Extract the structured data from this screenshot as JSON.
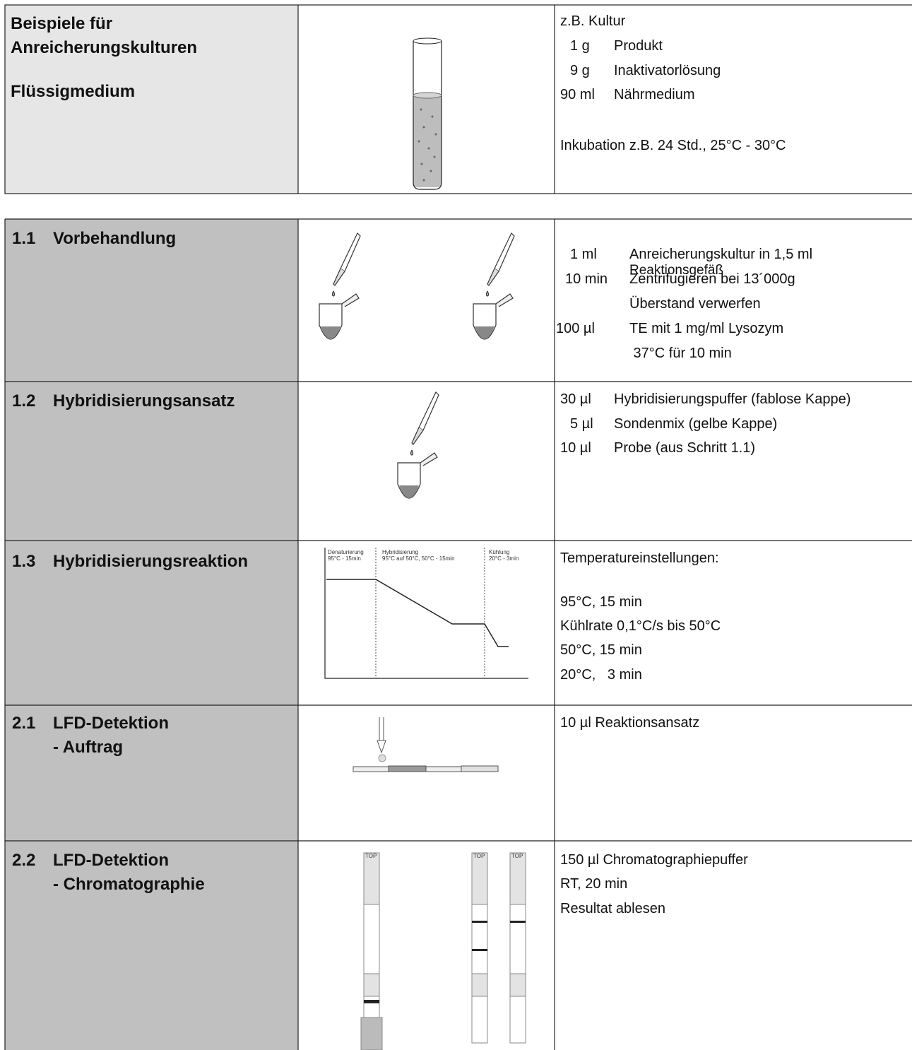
{
  "culture": {
    "title_lines": [
      "Beispiele für",
      "Anreicherungskulturen"
    ],
    "medium": "Flüssigmedium",
    "example": "z.B. Kultur",
    "items": [
      {
        "amount": "1 g",
        "text": "Produkt"
      },
      {
        "amount": "9 g",
        "text": "Inaktivatorlösung"
      },
      {
        "amount": "90 ml",
        "text": "Nährmedium"
      }
    ],
    "incubation": "Inkubation z.B. 24 Std., 25°C - 30°C"
  },
  "steps": [
    {
      "number": "1.1",
      "title": "Vorbehandlung",
      "lines": [
        {
          "amount": "1 ml",
          "text": [
            "Anreicherungskultur in 1,5 ml",
            "Reaktionsgefäß"
          ]
        },
        {
          "amount": "10 min",
          "text": [
            "Zentrifugieren bei 13´000g"
          ]
        },
        {
          "text": [
            "Überstand verwerfen"
          ]
        },
        {
          "amount": "100 µl",
          "text": [
            "TE mit 1 mg/ml Lysozym"
          ]
        },
        {
          "text": [
            " 37°C für 10 min"
          ]
        }
      ]
    },
    {
      "number": "1.2",
      "title": "Hybridisierungsansatz",
      "lines": [
        {
          "amount": "30 µl",
          "text": [
            "Hybridisierungspuffer (fablose Kappe)"
          ]
        },
        {
          "amount": "5 µl",
          "text": [
            "Sondenmix (gelbe Kappe)"
          ]
        },
        {
          "amount": "10 µl",
          "text": [
            "Probe (aus Schritt 1.1)"
          ]
        }
      ]
    },
    {
      "number": "1.3",
      "title": "Hybridisierungsreaktion",
      "diagram": [
        {
          "phase": "Denaturierung",
          "detail": "95°C - 15min"
        },
        {
          "phase": "Hybridisierung",
          "detail": "95°C auf 50°C, 50°C - 15min"
        },
        {
          "phase": "Kühlung",
          "detail": "20°C - 3min"
        }
      ],
      "heading": "Temperatureinstellungen:",
      "settings": [
        "95°C, 15 min",
        "Kühlrate 0,1°C/s bis 50°C",
        "50°C, 15 min",
        "20°C,   3 min"
      ]
    },
    {
      "number": "2.1",
      "title": "LFD-Detektion",
      "subtitle": "- Auftrag",
      "notes": [
        "10 µl Reaktionsansatz"
      ]
    },
    {
      "number": "2.2",
      "title": "LFD-Detektion",
      "subtitle": "- Chromatographie",
      "strip_label": "TOP",
      "notes": [
        "150 µl Chromatographiepuffer",
        "RT, 20 min",
        "Resultat ablesen"
      ]
    }
  ]
}
